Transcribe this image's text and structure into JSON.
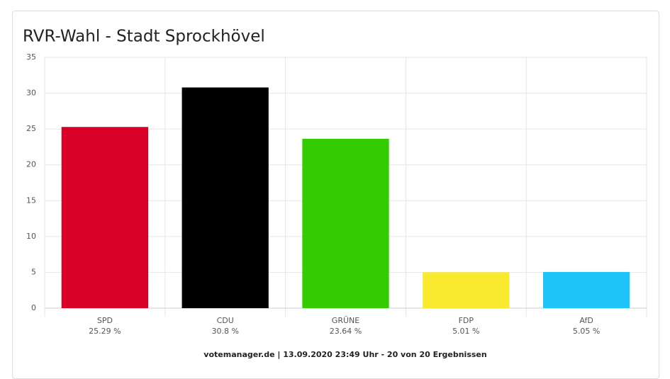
{
  "chart_data": {
    "type": "bar",
    "title": "RVR-Wahl - Stadt Sprockhövel",
    "categories": [
      "SPD",
      "CDU",
      "GRÜNE",
      "FDP",
      "AfD"
    ],
    "values": [
      25.29,
      30.8,
      23.64,
      5.01,
      5.05
    ],
    "value_labels": [
      "25.29 %",
      "30.8 %",
      "23.64 %",
      "5.01 %",
      "5.05 %"
    ],
    "colors": [
      "#d80027",
      "#000000",
      "#33cc00",
      "#f9ea2f",
      "#1ec5fb"
    ],
    "ylim": [
      0,
      35
    ],
    "yticks": [
      0,
      5,
      10,
      15,
      20,
      25,
      30,
      35
    ],
    "grid": true,
    "footer": "votemanager.de | 13.09.2020 23:49 Uhr - 20 von 20 Ergebnissen"
  }
}
